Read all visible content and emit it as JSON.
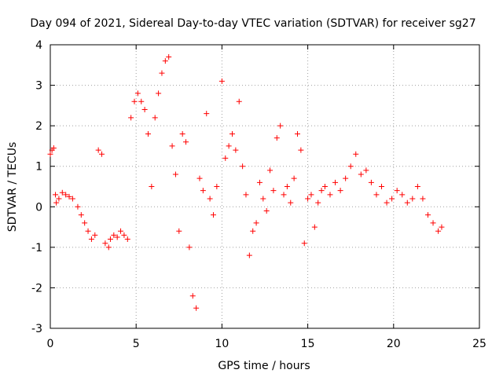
{
  "chart_data": {
    "type": "scatter",
    "title": "Day 094 of 2021, Sidereal Day-to-day VTEC variation (SDTVAR) for receiver sg27",
    "xlabel": "GPS time / hours",
    "ylabel": "SDTVAR / TECUs",
    "xlim": [
      0,
      25
    ],
    "ylim": [
      -3,
      4
    ],
    "xticks": [
      "0",
      "5",
      "10",
      "15",
      "20",
      "25"
    ],
    "yticks": [
      "-3",
      "-2",
      "-1",
      "0",
      "1",
      "2",
      "3",
      "4"
    ],
    "grid": true,
    "marker": "+",
    "color": "#ff0000",
    "series": [
      {
        "name": "SDTVAR",
        "x": [
          0.0,
          0.1,
          0.2,
          0.3,
          0.35,
          0.5,
          0.7,
          0.9,
          1.1,
          1.3,
          1.6,
          1.8,
          2.0,
          2.2,
          2.4,
          2.6,
          2.8,
          3.0,
          3.2,
          3.4,
          3.5,
          3.7,
          3.9,
          4.1,
          4.3,
          4.5,
          4.7,
          4.9,
          5.1,
          5.3,
          5.5,
          5.7,
          5.9,
          6.1,
          6.3,
          6.5,
          6.7,
          6.9,
          7.1,
          7.3,
          7.5,
          7.7,
          7.9,
          8.1,
          8.3,
          8.5,
          8.7,
          8.9,
          9.1,
          9.3,
          9.5,
          9.7,
          10.0,
          10.2,
          10.4,
          10.6,
          10.8,
          11.0,
          11.2,
          11.4,
          11.6,
          11.8,
          12.0,
          12.2,
          12.4,
          12.6,
          12.8,
          13.0,
          13.2,
          13.4,
          13.6,
          13.8,
          14.0,
          14.2,
          14.4,
          14.6,
          14.8,
          15.0,
          15.2,
          15.4,
          15.6,
          15.8,
          16.0,
          16.3,
          16.6,
          16.9,
          17.2,
          17.5,
          17.8,
          18.1,
          18.4,
          18.7,
          19.0,
          19.3,
          19.6,
          19.9,
          20.2,
          20.5,
          20.8,
          21.1,
          21.4,
          21.7,
          22.0,
          22.3,
          22.6,
          22.8
        ],
        "y": [
          1.3,
          1.4,
          1.45,
          0.3,
          0.1,
          0.2,
          0.35,
          0.3,
          0.25,
          0.2,
          0.0,
          -0.2,
          -0.4,
          -0.6,
          -0.8,
          -0.7,
          1.4,
          1.3,
          -0.9,
          -1.0,
          -0.8,
          -0.7,
          -0.75,
          -0.6,
          -0.7,
          -0.8,
          2.2,
          2.6,
          2.8,
          2.6,
          2.4,
          1.8,
          0.5,
          2.2,
          2.8,
          3.3,
          3.6,
          3.7,
          1.5,
          0.8,
          -0.6,
          1.8,
          1.6,
          -1.0,
          -2.2,
          -2.5,
          0.7,
          0.4,
          2.3,
          0.2,
          -0.2,
          0.5,
          3.1,
          1.2,
          1.5,
          1.8,
          1.4,
          2.6,
          1.0,
          0.3,
          -1.2,
          -0.6,
          -0.4,
          0.6,
          0.2,
          -0.1,
          0.9,
          0.4,
          1.7,
          2.0,
          0.3,
          0.5,
          0.1,
          0.7,
          1.8,
          1.4,
          -0.9,
          0.2,
          0.3,
          -0.5,
          0.1,
          0.4,
          0.5,
          0.3,
          0.6,
          0.4,
          0.7,
          1.0,
          1.3,
          0.8,
          0.9,
          0.6,
          0.3,
          0.5,
          0.1,
          0.2,
          0.4,
          0.3,
          0.1,
          0.2,
          0.5,
          0.2,
          -0.2,
          -0.4,
          -0.6,
          -0.5
        ]
      }
    ]
  }
}
